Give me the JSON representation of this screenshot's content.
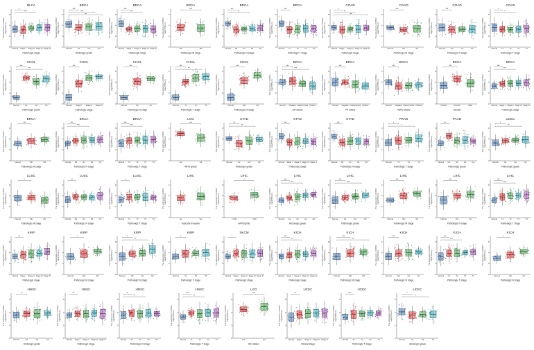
{
  "y_axis_label": [
    "The expression of CBX1",
    "log2(TPM+1)"
  ],
  "group_colors": {
    "Normal": "#1f5fa8",
    "A": "#e31a1c",
    "B": "#2e9e3a",
    "C": "#1da4b5",
    "D": "#9b3fb0"
  },
  "chart_data": [
    {
      "title": "BLCA",
      "xlabel": "Pathologic stage",
      "groups": [
        "Normal",
        "Stage I",
        "Stage II",
        "Stage III",
        "Stage IV"
      ],
      "medians": [
        3.3,
        3.2,
        3.5,
        3.6,
        3.6
      ],
      "sig": [
        "*",
        "***"
      ]
    },
    {
      "title": "BRCA",
      "xlabel": "Histologic grade",
      "groups": [
        "Normal",
        "G1",
        "G2",
        "G3"
      ],
      "medians": [
        4.2,
        3.6,
        3.7,
        3.8
      ],
      "sig": [
        "***",
        "***",
        "**"
      ]
    },
    {
      "title": "BRCA",
      "xlabel": "Pathologic stage",
      "groups": [
        "Normal",
        "Stage I",
        "Stage II",
        "Stage III",
        "Stage IV"
      ],
      "medians": [
        4.3,
        3.3,
        3.4,
        3.4,
        3.3
      ],
      "sig": [
        "***",
        "***"
      ]
    },
    {
      "title": "BRCA",
      "xlabel": "Pathologic M stage",
      "groups": [
        "M0",
        "M1"
      ],
      "medians": [
        3.6,
        3.5
      ],
      "sig": [
        "***"
      ]
    },
    {
      "title": "BRCA",
      "xlabel": "Pathologic N stage",
      "groups": [
        "Normal",
        "N0",
        "N1",
        "N2",
        "N3"
      ],
      "medians": [
        4.3,
        3.2,
        3.3,
        3.4,
        3.5
      ],
      "sig": [
        "***",
        "**"
      ]
    },
    {
      "title": "BRCA",
      "xlabel": "Pathologic T stage",
      "groups": [
        "Normal",
        "T1",
        "T2",
        "T3",
        "T4"
      ],
      "medians": [
        4.3,
        3.2,
        3.3,
        3.4,
        3.4
      ],
      "sig": [
        "***"
      ]
    },
    {
      "title": "COAD",
      "xlabel": "Pathologic stage",
      "groups": [
        "Normal",
        "Stage I",
        "Stage II",
        "Stage III",
        "Stage IV"
      ],
      "medians": [
        3.6,
        3.2,
        3.3,
        3.3,
        3.5
      ],
      "sig": [
        "*",
        "**",
        "**"
      ]
    },
    {
      "title": "COAD",
      "xlabel": "Pathologic M stage",
      "groups": [
        "Normal",
        "M0",
        "M1"
      ],
      "medians": [
        3.6,
        3.2,
        3.4
      ],
      "sig": [
        "***"
      ]
    },
    {
      "title": "COAD",
      "xlabel": "Pathologic N stage",
      "groups": [
        "Normal",
        "N0",
        "N1",
        "N2"
      ],
      "medians": [
        3.6,
        3.2,
        3.3,
        3.3
      ],
      "sig": [
        "***"
      ]
    },
    {
      "title": "COAD",
      "xlabel": "Pathologic T stage",
      "groups": [
        "Normal",
        "T1",
        "T2",
        "T3",
        "T4"
      ],
      "medians": [
        3.6,
        3.3,
        3.2,
        3.3,
        3.4
      ],
      "sig": [
        "*",
        "*"
      ]
    },
    {
      "title": "CHOL",
      "xlabel": "Pathologic grade",
      "groups": [
        "Normal",
        "G1",
        "G2",
        "G3"
      ],
      "medians": [
        1.2,
        4.8,
        4.1,
        4.6
      ],
      "sig": [
        "***",
        "***"
      ]
    },
    {
      "title": "CHOL",
      "xlabel": "Pathologic stage",
      "groups": [
        "Normal",
        "Stage I",
        "Stage II",
        "Stage IV"
      ],
      "medians": [
        1.2,
        3.7,
        4.8,
        5.0
      ],
      "sig": [
        "***"
      ]
    },
    {
      "title": "CHOL",
      "xlabel": "Pathologic N stage",
      "groups": [
        "Normal",
        "N0",
        "N1"
      ],
      "medians": [
        1.2,
        4.1,
        4.6
      ],
      "sig": [
        "***"
      ]
    },
    {
      "title": "CHOL",
      "xlabel": "Pathologic T stage",
      "groups": [
        "Normal",
        "T1",
        "T2",
        "T3"
      ],
      "medians": [
        1.2,
        4.1,
        4.8,
        5.0
      ],
      "sig": [
        "***",
        "**"
      ]
    },
    {
      "title": "CHOL",
      "xlabel": "Pathologic M stage",
      "groups": [
        "Normal",
        "M0",
        "M1"
      ],
      "medians": [
        1.2,
        4.3,
        5.3
      ],
      "sig": [
        "***"
      ]
    },
    {
      "title": "BRCA",
      "xlabel": "ER status",
      "groups": [
        "Normal",
        "Negative",
        "Indeterminate",
        "Positive"
      ],
      "medians": [
        4.0,
        4.2,
        3.7,
        3.3
      ],
      "sig": [
        "***",
        "***"
      ]
    },
    {
      "title": "BRCA",
      "xlabel": "PR status",
      "groups": [
        "Normal",
        "Negative",
        "Indeterminate",
        "Positive"
      ],
      "medians": [
        4.0,
        4.0,
        3.6,
        3.3
      ],
      "sig": [
        "***"
      ]
    },
    {
      "title": "BRCA",
      "xlabel": "HER2 status",
      "groups": [
        "Normal",
        "Negative",
        "Indeterminate",
        "Positive"
      ],
      "medians": [
        4.0,
        3.3,
        3.4,
        3.5
      ],
      "sig": [
        "***"
      ]
    },
    {
      "title": "BRCA",
      "xlabel": "Gender",
      "groups": [
        "Normal",
        "Female",
        "Male"
      ],
      "medians": [
        3.4,
        4.6,
        3.8
      ],
      "sig": [
        "***"
      ]
    },
    {
      "title": "BRCA",
      "xlabel": "Pathologic stage",
      "groups": [
        "Normal",
        "Stage I",
        "Stage II",
        "Stage III",
        "Stage IV"
      ],
      "medians": [
        3.3,
        3.7,
        3.8,
        3.8,
        3.9
      ],
      "sig": [
        "***",
        "***"
      ]
    },
    {
      "title": "BRCA",
      "xlabel": "Pathologic M stage",
      "groups": [
        "Normal",
        "M0",
        "M1"
      ],
      "medians": [
        3.2,
        3.6,
        3.9
      ],
      "sig": [
        "***"
      ]
    },
    {
      "title": "BRCA",
      "xlabel": "Pathologic N stage",
      "groups": [
        "Normal",
        "N0",
        "N1",
        "N2",
        "N3"
      ],
      "medians": [
        3.2,
        3.7,
        3.8,
        3.8,
        3.9
      ],
      "sig": [
        "***",
        "***"
      ]
    },
    {
      "title": "BRCA",
      "xlabel": "Pathologic T stage",
      "groups": [
        "Normal",
        "T1",
        "T2",
        "T3",
        "T4"
      ],
      "medians": [
        3.2,
        3.7,
        3.8,
        3.8,
        3.9
      ],
      "sig": [
        "***",
        "***"
      ]
    },
    {
      "title": "LGG",
      "xlabel": "WHO grade",
      "groups": [
        "G2",
        "G3"
      ],
      "medians": [
        5.0,
        4.2
      ],
      "sig": [
        "***"
      ]
    },
    {
      "title": "STAD",
      "xlabel": "Histologic grade",
      "groups": [
        "Normal",
        "G1",
        "G2",
        "G3"
      ],
      "medians": [
        4.1,
        3.2,
        3.7,
        3.9
      ],
      "sig": [
        "**",
        "**"
      ]
    },
    {
      "title": "STAD",
      "xlabel": "Pathologic stage",
      "groups": [
        "Normal",
        "Stage I",
        "Stage II",
        "Stage III",
        "Stage IV"
      ],
      "medians": [
        4.5,
        3.4,
        3.6,
        3.6,
        3.5
      ],
      "sig": [
        "***"
      ]
    },
    {
      "title": "STAD",
      "xlabel": "Pathologic N stage",
      "groups": [
        "Normal",
        "N0",
        "N1",
        "N2",
        "N3"
      ],
      "medians": [
        4.5,
        3.4,
        3.6,
        3.6,
        3.5
      ],
      "sig": [
        "***"
      ]
    },
    {
      "title": "PRAD",
      "xlabel": "Pathologic T stage",
      "groups": [
        "Normal",
        "T2",
        "T3",
        "T4"
      ],
      "medians": [
        3.3,
        3.7,
        3.8,
        4.1
      ],
      "sig": [
        "*",
        "*"
      ]
    },
    {
      "title": "PAAD",
      "xlabel": "Pathologic grade",
      "groups": [
        "Normal",
        "G1",
        "G2",
        "G3",
        "G4"
      ],
      "medians": [
        3.2,
        4.6,
        3.7,
        3.8,
        3.6
      ],
      "sig": [
        "**"
      ]
    },
    {
      "title": "UCEC",
      "xlabel": "Pathologic grade",
      "groups": [
        "Normal",
        "G1",
        "G2",
        "G3"
      ],
      "medians": [
        3.3,
        3.7,
        3.8,
        3.9
      ],
      "sig": [
        "*",
        "**"
      ]
    },
    {
      "title": "LUSC",
      "xlabel": "Pathologic M stage",
      "groups": [
        "Normal",
        "M0",
        "M1"
      ],
      "medians": [
        3.6,
        3.7,
        3.2
      ],
      "sig": [
        "*"
      ]
    },
    {
      "title": "LUSC",
      "xlabel": "Pathologic N stage",
      "groups": [
        "Normal",
        "N0",
        "N1",
        "N2",
        "N3"
      ],
      "medians": [
        3.3,
        3.8,
        3.8,
        3.7,
        4.0
      ],
      "sig": [
        "**"
      ]
    },
    {
      "title": "LUSC",
      "xlabel": "Pathologic T stage",
      "groups": [
        "Normal",
        "T1",
        "T2",
        "T3",
        "T4"
      ],
      "medians": [
        3.3,
        3.8,
        3.8,
        3.8,
        3.7
      ],
      "sig": [
        "*"
      ]
    },
    {
      "title": "LIHC",
      "xlabel": "Vascular invasion",
      "groups": [
        "No",
        "Yes"
      ],
      "medians": [
        3.6,
        3.9
      ],
      "sig": []
    },
    {
      "title": "LIHC",
      "xlabel": "AFP(ng/ml)",
      "groups": [
        "<=400",
        ">400"
      ],
      "medians": [
        3.6,
        4.2
      ],
      "sig": [
        "*"
      ]
    },
    {
      "title": "LIHC",
      "xlabel": "Histologic grade",
      "groups": [
        "Normal",
        "G1",
        "G2",
        "G3",
        "G4"
      ],
      "medians": [
        3.2,
        3.6,
        3.8,
        4.1,
        4.3
      ],
      "sig": [
        "***",
        "***"
      ]
    },
    {
      "title": "LIHC",
      "xlabel": "Pathologic grade",
      "groups": [
        "Normal",
        "G1",
        "G2",
        "G3"
      ],
      "medians": [
        3.2,
        3.7,
        3.9,
        4.1
      ],
      "sig": [
        "***",
        "***"
      ]
    },
    {
      "title": "LIHC",
      "xlabel": "Pathologic M stage",
      "groups": [
        "Normal",
        "M0",
        "M1"
      ],
      "medians": [
        3.2,
        4.0,
        4.4
      ],
      "sig": [
        "***"
      ]
    },
    {
      "title": "LIHC",
      "xlabel": "Pathologic N stage",
      "groups": [
        "Normal",
        "N0",
        "N1"
      ],
      "medians": [
        3.2,
        4.0,
        4.3
      ],
      "sig": [
        "***"
      ]
    },
    {
      "title": "LIHC",
      "xlabel": "Pathologic T stage",
      "groups": [
        "Normal",
        "T1",
        "T2",
        "T3",
        "T4"
      ],
      "medians": [
        3.2,
        3.8,
        4.0,
        4.1,
        4.2
      ],
      "sig": [
        "***",
        "***"
      ]
    },
    {
      "title": "KIRP",
      "xlabel": "Pathologic stage",
      "groups": [
        "Normal",
        "Stage I",
        "Stage II",
        "Stage III",
        "Stage IV"
      ],
      "medians": [
        3.3,
        3.6,
        3.8,
        3.9,
        4.2
      ],
      "sig": [
        "**"
      ]
    },
    {
      "title": "KIRP",
      "xlabel": "Pathologic M stage",
      "groups": [
        "Normal",
        "M0",
        "M1"
      ],
      "medians": [
        3.3,
        3.8,
        4.3
      ],
      "sig": [
        "*"
      ]
    },
    {
      "title": "KIRP",
      "xlabel": "Pathologic N stage",
      "groups": [
        "Normal",
        "N0",
        "N1",
        "N2"
      ],
      "medians": [
        3.3,
        3.8,
        3.9,
        4.6
      ],
      "sig": [
        "*",
        "**"
      ]
    },
    {
      "title": "KIRP",
      "xlabel": "Pathologic T stage",
      "groups": [
        "Normal",
        "T1",
        "T2",
        "T3"
      ],
      "medians": [
        3.3,
        3.8,
        3.9,
        4.0
      ],
      "sig": [
        "*"
      ]
    },
    {
      "title": "SKCM",
      "xlabel": "Pathologic stage",
      "groups": [
        "Normal",
        "Stage I",
        "Stage II",
        "Stage III",
        "Stage IV"
      ],
      "medians": [
        3.3,
        3.9,
        3.8,
        3.8,
        3.9
      ],
      "sig": [
        "*"
      ]
    },
    {
      "title": "KICH",
      "xlabel": "Pathologic stage",
      "groups": [
        "Normal",
        "Stage I",
        "Stage II",
        "Stage III",
        "Stage IV"
      ],
      "medians": [
        3.3,
        3.6,
        3.8,
        3.7,
        3.9
      ],
      "sig": [
        "***",
        "**"
      ]
    },
    {
      "title": "KICH",
      "xlabel": "Pathologic M stage",
      "groups": [
        "Normal",
        "M0",
        "M1"
      ],
      "medians": [
        3.3,
        3.9,
        4.1
      ],
      "sig": [
        "***",
        "***"
      ]
    },
    {
      "title": "KICH",
      "xlabel": "Pathologic N stage",
      "groups": [
        "Normal",
        "N0",
        "N1",
        "N2"
      ],
      "medians": [
        3.3,
        3.9,
        4.0,
        4.1
      ],
      "sig": [
        "***"
      ]
    },
    {
      "title": "KICH",
      "xlabel": "Pathologic T stage",
      "groups": [
        "Normal",
        "T1",
        "T2",
        "T3",
        "T4"
      ],
      "medians": [
        3.3,
        3.9,
        3.9,
        4.0,
        4.1
      ],
      "sig": [
        "***",
        "***"
      ]
    },
    {
      "title": "KICH",
      "xlabel": "Pathologic N stage",
      "groups": [
        "Normal",
        "N0",
        "N1"
      ],
      "medians": [
        3.0,
        3.6,
        4.2
      ],
      "sig": [
        "*"
      ]
    },
    {
      "title": "HNSC",
      "xlabel": "Histologic grade",
      "groups": [
        "Normal",
        "G1",
        "G2",
        "G3"
      ],
      "medians": [
        3.6,
        3.8,
        3.8,
        3.9
      ],
      "sig": [
        "**"
      ]
    },
    {
      "title": "HNSC",
      "xlabel": "Pathologic stage",
      "groups": [
        "Normal",
        "Stage I",
        "Stage II",
        "Stage III",
        "Stage IV"
      ],
      "medians": [
        3.6,
        3.8,
        3.8,
        3.9,
        3.8
      ],
      "sig": [
        "**"
      ]
    },
    {
      "title": "HNSC",
      "xlabel": "Pathologic N stage",
      "groups": [
        "Normal",
        "N0",
        "N1",
        "N2",
        "N3"
      ],
      "medians": [
        3.6,
        3.9,
        3.8,
        3.9,
        3.8
      ],
      "sig": [
        "**",
        "**"
      ]
    },
    {
      "title": "HNSC",
      "xlabel": "Pathologic T stage",
      "groups": [
        "Normal",
        "T1",
        "T2",
        "T3",
        "T4"
      ],
      "medians": [
        3.3,
        3.9,
        3.8,
        3.9,
        3.9
      ],
      "sig": [
        "***",
        "**"
      ]
    },
    {
      "title": "LGG",
      "xlabel": "IDH status",
      "groups": [
        "WT",
        "Mut"
      ],
      "medians": [
        4.5,
        4.9
      ],
      "sig": [
        "***"
      ]
    },
    {
      "title": "UCEC",
      "xlabel": "Clinical stage",
      "groups": [
        "Normal",
        "Stage I",
        "Stage II",
        "Stage III",
        "Stage IV"
      ],
      "medians": [
        3.3,
        3.7,
        3.8,
        3.9,
        3.9
      ],
      "sig": [
        "**"
      ]
    },
    {
      "title": "UCEC",
      "xlabel": "Pathologic T stage",
      "groups": [
        "Normal",
        "T1",
        "T2",
        "T3",
        "T4"
      ],
      "medians": [
        3.3,
        3.7,
        3.8,
        3.9,
        3.9
      ],
      "sig": [
        "***"
      ]
    },
    {
      "title": "UCEC",
      "xlabel": "Histologic grade",
      "groups": [
        "Normal",
        "G1",
        "G2",
        "G3"
      ],
      "medians": [
        4.1,
        3.6,
        3.7,
        3.7
      ],
      "sig": [
        "*",
        "*"
      ]
    }
  ]
}
